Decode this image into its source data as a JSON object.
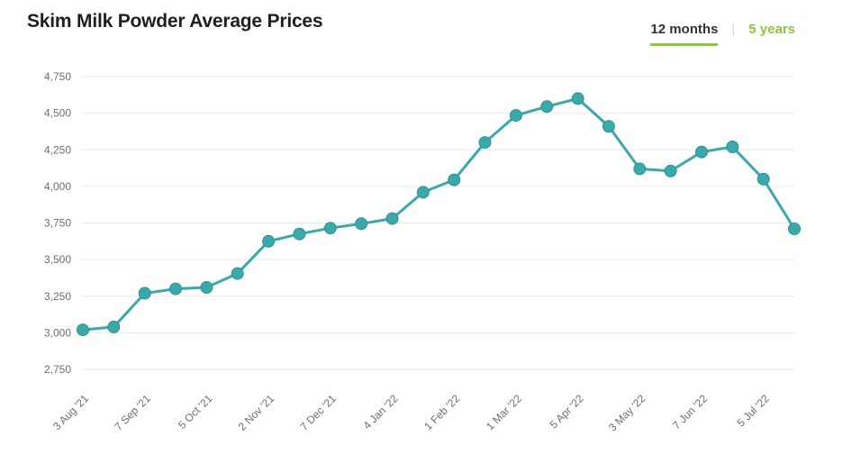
{
  "header": {
    "title": "Skim Milk Powder Average Prices",
    "range_tabs": {
      "items": [
        {
          "label": "12 months",
          "active": true
        },
        {
          "label": "5 years",
          "active": false
        }
      ],
      "divider": "|"
    }
  },
  "colors": {
    "line": "#3BA8AA",
    "marker_fill": "#3BA8AA",
    "marker_stroke": "#2E9396",
    "accent_green": "#8CC63F",
    "grid": "#e9e9e9",
    "axis_text": "#6e6e6e",
    "title_text": "#1f1f1f"
  },
  "chart_data": {
    "type": "line",
    "title": "Skim Milk Powder Average Prices",
    "series": [
      {
        "name": "Skim Milk Powder Average Prices",
        "marker": "circle",
        "values": [
          3020,
          3040,
          3270,
          3300,
          3310,
          3405,
          3625,
          3675,
          3715,
          3745,
          3780,
          3960,
          4045,
          4300,
          4485,
          4545,
          4600,
          4410,
          4120,
          4105,
          4235,
          4270,
          4050,
          3710
        ]
      }
    ],
    "x_tick_labels": [
      "3 Aug '21",
      "7 Sep '21",
      "5 Oct '21",
      "2 Nov '21",
      "7 Dec '21",
      "4 Jan '22",
      "1 Feb '22",
      "1 Mar '22",
      "5 Apr '22",
      "3 May '22",
      "7 Jun '22",
      "5 Jul '22"
    ],
    "x_tick_step": 2,
    "x_tick_rotation": -45,
    "y_ticks": [
      4750,
      4500,
      4250,
      4000,
      3750,
      3500,
      3250,
      3000,
      2750
    ],
    "y_tick_labels": [
      "4,750",
      "4,500",
      "4,250",
      "4,000",
      "3,750",
      "3,500",
      "3,250",
      "3,000",
      "2,750"
    ],
    "ylim": [
      2750,
      4750
    ],
    "grid": "horizontal-only",
    "legend": "none"
  }
}
